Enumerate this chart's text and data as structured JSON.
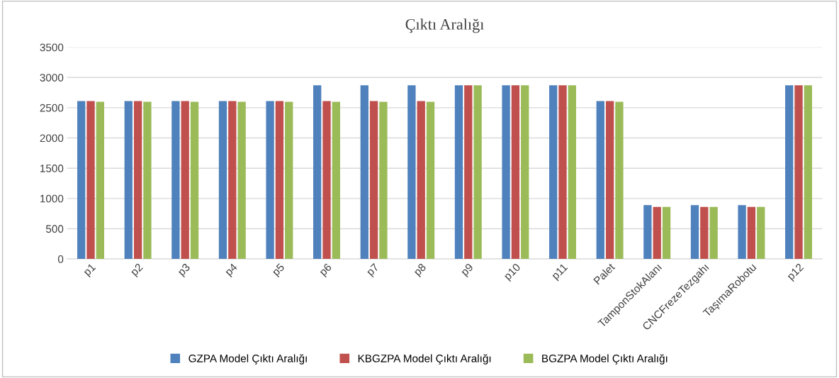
{
  "chart_data": {
    "type": "bar",
    "title": "Çıktı Aralığı",
    "categories": [
      "p1",
      "p2",
      "p3",
      "p4",
      "p5",
      "p6",
      "p7",
      "p8",
      "p9",
      "p10",
      "p11",
      "Palet",
      "TamponStokAlanı",
      "CNCFrezeTezgahı",
      "TaşımaRobotu",
      "p12"
    ],
    "series": [
      {
        "name": "GZPA Model Çıktı Aralığı",
        "color": "#4f81bd",
        "values": [
          2610,
          2610,
          2610,
          2610,
          2610,
          2870,
          2870,
          2870,
          2870,
          2870,
          2870,
          2610,
          890,
          890,
          890,
          2870
        ]
      },
      {
        "name": "KBGZPA Model Çıktı Aralığı",
        "color": "#c0504d",
        "values": [
          2610,
          2610,
          2610,
          2610,
          2610,
          2610,
          2610,
          2610,
          2870,
          2870,
          2870,
          2610,
          860,
          860,
          860,
          2870
        ]
      },
      {
        "name": "BGZPA Model Çıktı Aralığı",
        "color": "#9bbb59",
        "values": [
          2600,
          2600,
          2600,
          2600,
          2600,
          2600,
          2600,
          2600,
          2870,
          2870,
          2870,
          2600,
          860,
          860,
          860,
          2870
        ]
      }
    ],
    "ylim": [
      0,
      3500
    ],
    "yticks": [
      0,
      500,
      1000,
      1500,
      2000,
      2500,
      3000,
      3500
    ],
    "grid": "y",
    "legend": "bottom"
  }
}
